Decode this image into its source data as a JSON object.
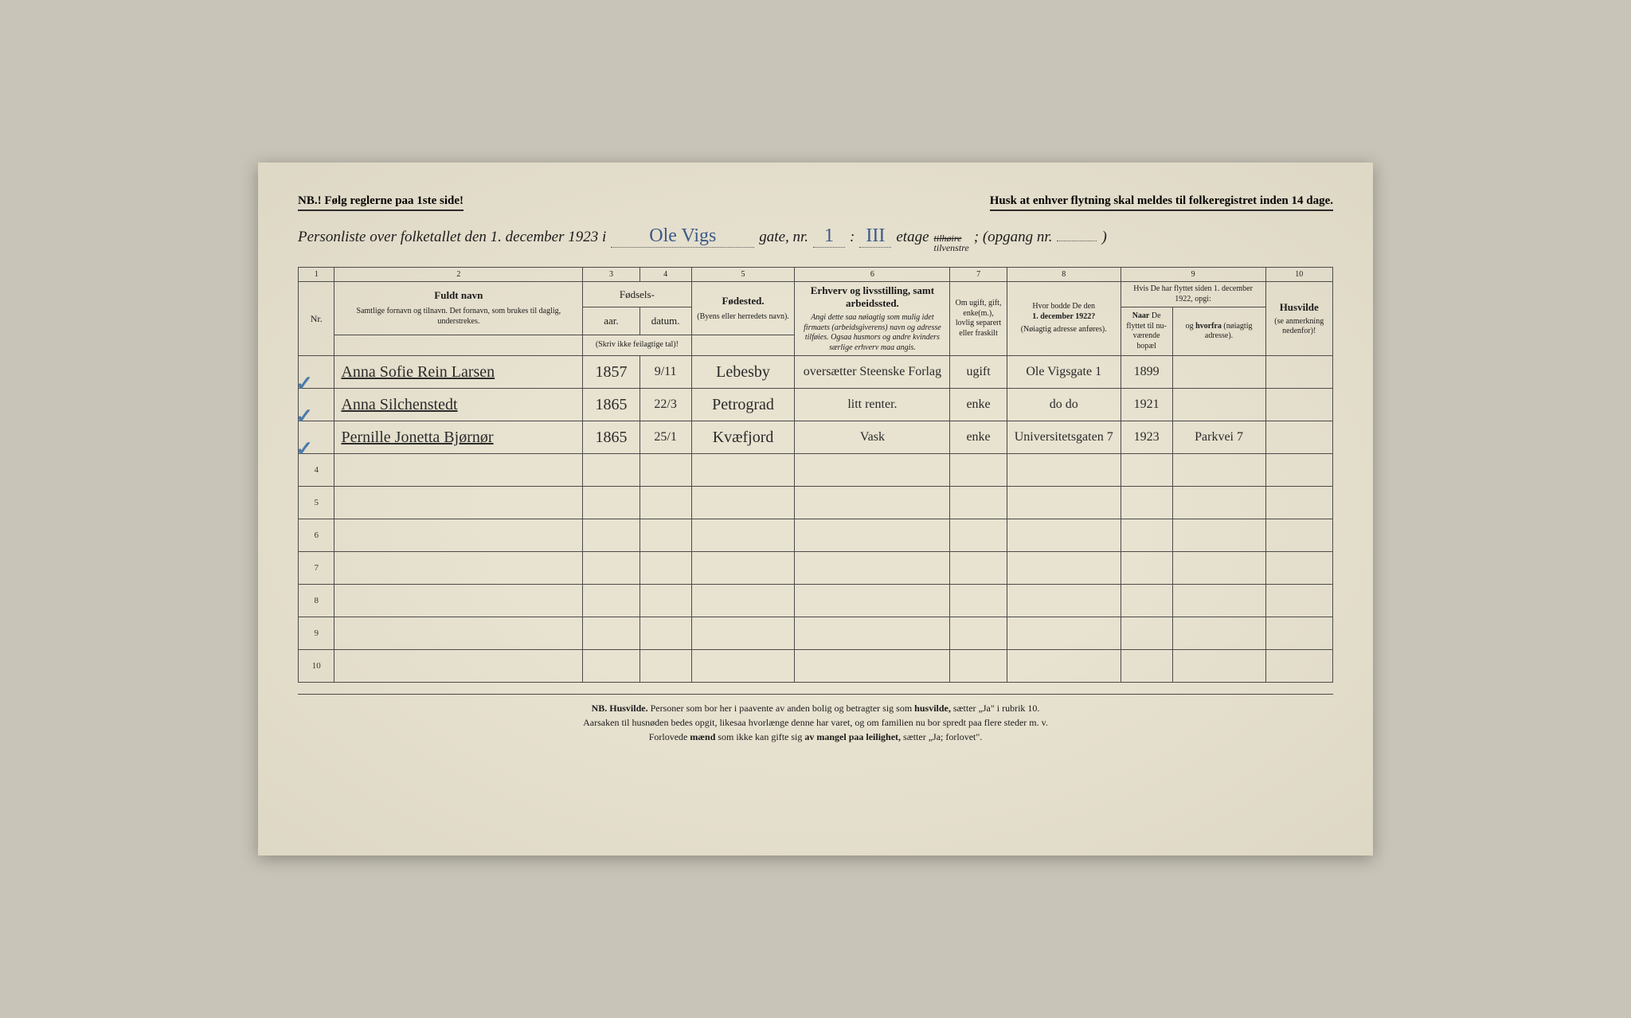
{
  "top": {
    "left": "NB.! Følg reglerne paa 1ste side!",
    "right": "Husk at enhver flytning skal meldes til folkeregistret inden 14 dage."
  },
  "title": {
    "prefix": "Personliste over folketallet den 1. december 1923 i",
    "street_hw": "Ole Vigs",
    "gate_label": "gate, nr.",
    "gate_nr_hw": "1",
    "sep": ":",
    "etage_hw": "III",
    "etage_label": "etage",
    "side_strike": "tilhøire",
    "side_keep": "tilvenstre",
    "opgang_label": "; (opgang nr.",
    "opgang_hw": "",
    "close": ")"
  },
  "columns": {
    "nums": [
      "1",
      "2",
      "3",
      "4",
      "5",
      "6",
      "7",
      "8",
      "9",
      "10"
    ],
    "c1": "Nr.",
    "c2_main": "Fuldt navn",
    "c2_sub": "Samtlige fornavn og tilnavn. Det fornavn, som brukes til daglig, understrekes.",
    "c34_top": "Fødsels-",
    "c3": "aar.",
    "c4": "datum.",
    "c34_sub": "(Skriv ikke feilagtige tal)!",
    "c5_main": "Fødested.",
    "c5_sub": "(Byens eller herredets navn).",
    "c6_main": "Erhverv og livsstilling, samt arbeidssted.",
    "c6_sub": "Angi dette saa nøiagtig som mulig idet firmaets (arbeidsgiverens) navn og adresse tilføies. Ogsaa husmors og andre kvinders særlige erhverv maa angis.",
    "c7": "Om ugift, gift, enke(m.), lovlig separert eller fraskilt",
    "c8_main": "Hvor bodde De den 1. december 1922?",
    "c8_sub": "(Nøiagtig adresse anføres).",
    "c9_top": "Hvis De har flyttet siden 1. december 1922, opgi:",
    "c9a": "Naar De flyttet til nuværende bopæl",
    "c9b": "og hvorfra (nøiagtig adresse).",
    "c10_main": "Husvilde",
    "c10_sub": "(se anmerkning nedenfor)!"
  },
  "rows": [
    {
      "check": "✓",
      "name": "Anna Sofie Rein Larsen",
      "year": "1857",
      "date": "9/11",
      "birthplace": "Lebesby",
      "occupation": "oversætter Steenske Forlag",
      "status": "ugift",
      "addr1922": "Ole Vigsgate 1",
      "moved_when": "1899",
      "moved_from": "",
      "husvilde": ""
    },
    {
      "check": "✓",
      "name": "Anna Silchenstedt",
      "year": "1865",
      "date": "22/3",
      "birthplace": "Petrograd",
      "occupation": "litt renter.",
      "status": "enke",
      "addr1922": "do   do",
      "moved_when": "1921",
      "moved_from": "",
      "husvilde": ""
    },
    {
      "check": "✓",
      "name": "Pernille Jonetta Bjørnør",
      "year": "1865",
      "date": "25/1",
      "birthplace": "Kvæfjord",
      "occupation": "Vask",
      "status": "enke",
      "addr1922": "Universitetsgaten 7",
      "moved_when": "1923",
      "moved_from": "Parkvei 7",
      "husvilde": ""
    }
  ],
  "empty_rows": [
    "4",
    "5",
    "6",
    "7",
    "8",
    "9",
    "10"
  ],
  "footer": {
    "l1a": "NB.   Husvilde.",
    "l1b": "  Personer som bor her i paavente av anden bolig og betragter sig som ",
    "l1c": "husvilde,",
    "l1d": " sætter „Ja\" i rubrik 10.",
    "l2": "Aarsaken til husnøden bedes opgit, likesaa hvorlænge denne har varet, og om familien nu bor spredt paa flere steder m. v.",
    "l3a": "Forlovede ",
    "l3b": "mænd",
    "l3c": " som ikke kan gifte sig ",
    "l3d": "av mangel paa leilighet,",
    "l3e": " sætter „Ja; forlovet\"."
  },
  "style": {
    "page_bg": "#e8e2d0",
    "body_bg": "#c8c4b8",
    "ink": "#1a1a1a",
    "hw_blue": "#3a5a8a",
    "hw_black": "#2a2a2a",
    "border": "#4a4a4a",
    "check_color": "#4a7aaa"
  }
}
